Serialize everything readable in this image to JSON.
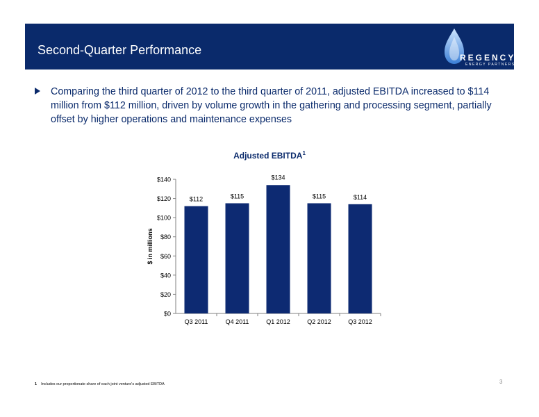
{
  "header": {
    "title": "Second-Quarter Performance",
    "logo_text": "REGENCY",
    "logo_subtext": "ENERGY PARTNERS"
  },
  "bullet": {
    "text": "Comparing the third quarter of 2012 to the third quarter of 2011, adjusted EBITDA increased to $114 million from $112 million, driven by volume growth in the gathering and processing segment, partially offset by higher operations and maintenance expenses"
  },
  "chart_title": {
    "text": "Adjusted EBITDA",
    "superscript": "1"
  },
  "chart_data": {
    "type": "bar",
    "title": "Adjusted EBITDA",
    "xlabel": "",
    "ylabel": "$ in millions",
    "categories": [
      "Q3 2011",
      "Q4 2011",
      "Q1 2012",
      "Q2 2012",
      "Q3 2012"
    ],
    "values": [
      112,
      115,
      134,
      115,
      114
    ],
    "data_labels": [
      "$112",
      "$115",
      "$134",
      "$115",
      "$114"
    ],
    "ylim": [
      0,
      140
    ],
    "yticks": [
      0,
      20,
      40,
      60,
      80,
      100,
      120,
      140
    ],
    "ytick_labels": [
      "$0",
      "$20",
      "$40",
      "$60",
      "$80",
      "$100",
      "$120",
      "$140"
    ],
    "grid": false,
    "bar_color": "#0d2a72"
  },
  "footnote": {
    "number": "1",
    "text": "Includes our proportionate share of each joint venture's adjusted EBITDA"
  },
  "page_number": "3",
  "colors": {
    "header_bg": "#0a2a6b",
    "text_blue": "#0a2a6b"
  }
}
